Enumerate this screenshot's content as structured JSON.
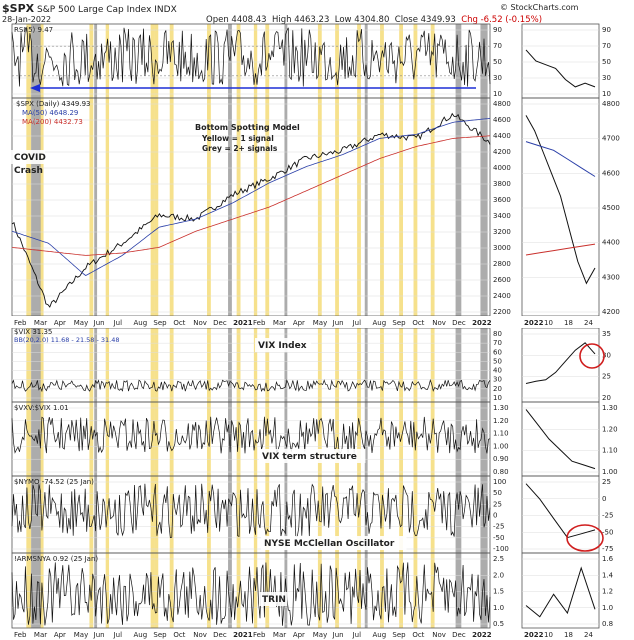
{
  "header": {
    "symbol": "$SPX",
    "name": "S&P 500 Large Cap Index",
    "exchange": "INDX",
    "date": "28-Jan-2022",
    "open": "Open 4408.43",
    "high": "High 4463.23",
    "low": "Low 4304.80",
    "close": "Close 4349.93",
    "chg": "Chg -6.52 (-0.15%)",
    "credit": "© StockCharts.com"
  },
  "panels": {
    "rsi": {
      "label": "RSI(5) 9.47",
      "ticks": [
        "90",
        "70",
        "50",
        "30",
        "10"
      ]
    },
    "price": {
      "legend": [
        "$SPX (Daily) 4349.93",
        "MA(50) 4648.29",
        "MA(200) 4432.73"
      ],
      "ticks": [
        "4800",
        "4600",
        "4400",
        "4200",
        "4000",
        "3800",
        "3600",
        "3400",
        "3200",
        "3000",
        "2800",
        "2600",
        "2400",
        "2200"
      ]
    },
    "vix": {
      "label": "$VIX 31.35",
      "bb": "BB(20,2.0) 11.68 - 21.58 - 31.48",
      "ticks": [
        "80",
        "70",
        "60",
        "50",
        "40",
        "30",
        "20",
        "10"
      ]
    },
    "term": {
      "label": "$VXV:$VIX 1.01",
      "ticks": [
        "1.30",
        "1.20",
        "1.10",
        "1.00",
        "0.90",
        "0.80"
      ]
    },
    "nymo": {
      "label": "$NYMO -74.52 (25 Jan)",
      "ticks": [
        "100",
        "50",
        "25",
        "0",
        "-25",
        "-50",
        "-100"
      ]
    },
    "trin": {
      "label": "!ARMSNYA 0.92 (25 Jan)",
      "ticks": [
        "2.5",
        "2.0",
        "1.5",
        "1.0",
        "0.5"
      ]
    }
  },
  "side_ticks": {
    "rsi": [
      "90",
      "70",
      "50",
      "30",
      "10"
    ],
    "price": [
      "4800",
      "4700",
      "4600",
      "4500",
      "4400",
      "4300",
      "4200"
    ],
    "vix": [
      "35",
      "30",
      "25",
      "20"
    ],
    "term": [
      "1.30",
      "1.20",
      "1.10",
      "1.00"
    ],
    "nymo": [
      "25",
      "0",
      "-25",
      "-50",
      "-75"
    ],
    "trin": [
      "1.6",
      "1.4",
      "1.2",
      "1.0",
      "0.8"
    ]
  },
  "x_axis": [
    "Feb",
    "Mar",
    "Apr",
    "May",
    "Jun",
    "Jul",
    "Aug",
    "Sep",
    "Oct",
    "Nov",
    "Dec",
    "2021",
    "Feb",
    "Mar",
    "Apr",
    "May",
    "Jun",
    "Jul",
    "Aug",
    "Sep",
    "Oct",
    "Nov",
    "Dec",
    "2022"
  ],
  "x_axis_side": [
    "2022",
    "10",
    "18",
    "24"
  ],
  "annotations": {
    "covid": [
      "COVID",
      "Crash"
    ],
    "model": [
      "Bottom Spotting Model",
      "Yellow = 1 signal",
      "Grey = 2+ signals"
    ],
    "vix_index": "VIX Index",
    "term_structure": "VIX term structure",
    "mcclellan": "NYSE McClellan Oscillator",
    "trin": "TRIN"
  },
  "colors": {
    "yellow": "#f5dc78",
    "grey": "#9e9e9e",
    "ma50": "#2a3fa8",
    "ma200": "#c9302c",
    "arrow": "#1d2fd6",
    "circle": "#d01e1e",
    "rsi_fill": "#3a7a3a"
  },
  "chart_data": {
    "type": "line",
    "title": "S&P 500 Large Cap Index",
    "x": [
      "Feb 2020",
      "Mar 2020",
      "Apr 2020",
      "Jun 2020",
      "Aug 2020",
      "Oct 2020",
      "Dec 2020",
      "Feb 2021",
      "Apr 2021",
      "Jun 2021",
      "Aug 2021",
      "Oct 2021",
      "Dec 2021",
      "Jan 2022"
    ],
    "series": [
      {
        "name": "$SPX (Daily)",
        "values": [
          3380,
          2300,
          2800,
          3100,
          3450,
          3400,
          3700,
          3900,
          4150,
          4250,
          4450,
          4400,
          4700,
          4350
        ]
      },
      {
        "name": "MA(50)",
        "values": [
          3250,
          3100,
          2700,
          2950,
          3300,
          3400,
          3600,
          3850,
          4050,
          4200,
          4400,
          4450,
          4600,
          4648
        ]
      },
      {
        "name": "MA(200)",
        "values": [
          3050,
          3000,
          2950,
          2980,
          3050,
          3250,
          3400,
          3550,
          3750,
          3950,
          4150,
          4300,
          4400,
          4432
        ]
      }
    ],
    "ylim": [
      2200,
      4900
    ],
    "signals_yellow": [
      [
        0.03,
        0.04
      ],
      [
        0.058,
        0.066
      ],
      [
        0.162,
        0.17
      ],
      [
        0.196,
        0.203
      ],
      [
        0.29,
        0.298
      ],
      [
        0.298,
        0.306
      ],
      [
        0.33,
        0.338
      ],
      [
        0.408,
        0.416
      ],
      [
        0.47,
        0.478
      ],
      [
        0.506,
        0.513
      ],
      [
        0.53,
        0.538
      ],
      [
        0.64,
        0.648
      ],
      [
        0.676,
        0.684
      ],
      [
        0.722,
        0.73
      ],
      [
        0.77,
        0.778
      ],
      [
        0.81,
        0.818
      ],
      [
        0.84,
        0.848
      ],
      [
        0.876,
        0.884
      ]
    ],
    "signals_grey": [
      [
        0.04,
        0.06
      ],
      [
        0.172,
        0.178
      ],
      [
        0.452,
        0.46
      ],
      [
        0.57,
        0.576
      ],
      [
        0.738,
        0.744
      ],
      [
        0.928,
        0.94
      ],
      [
        0.98,
        0.995
      ]
    ]
  }
}
